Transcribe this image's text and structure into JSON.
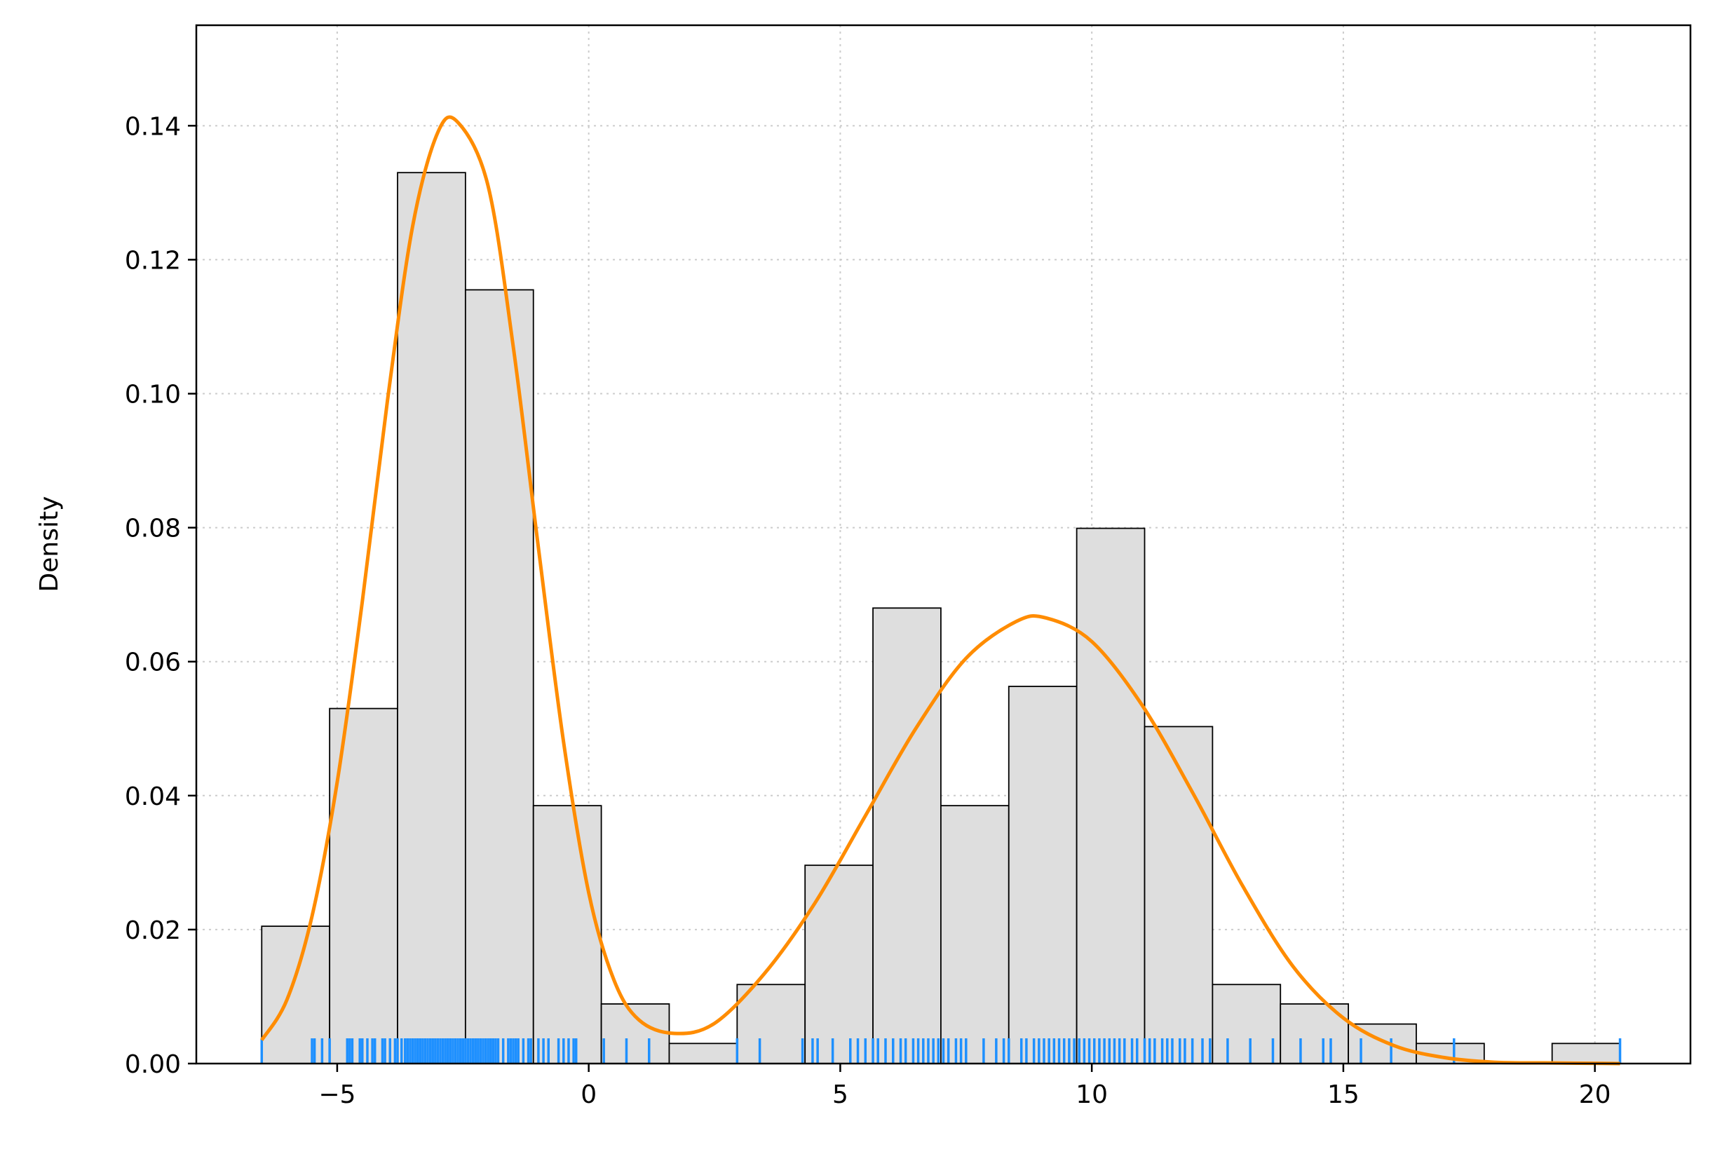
{
  "chart_data": {
    "type": "histogram",
    "xlabel": "",
    "ylabel": "Density",
    "xlim": [
      -7.8,
      21.9
    ],
    "ylim": [
      0,
      0.155
    ],
    "grid": true,
    "x_ticks": [
      -5,
      0,
      5,
      10,
      15,
      20
    ],
    "x_tick_labels": [
      "−5",
      "0",
      "5",
      "10",
      "15",
      "20"
    ],
    "y_ticks": [
      0.0,
      0.02,
      0.04,
      0.06,
      0.08,
      0.1,
      0.12,
      0.14
    ],
    "y_tick_labels": [
      "0.00",
      "0.02",
      "0.04",
      "0.06",
      "0.08",
      "0.10",
      "0.12",
      "0.14"
    ],
    "histogram": {
      "bin_edges": [
        -6.5,
        -5.15,
        -3.8,
        -2.45,
        -1.1,
        0.25,
        1.6,
        2.95,
        4.3,
        5.65,
        7.0,
        8.35,
        9.7,
        11.05,
        12.4,
        13.75,
        15.1,
        16.45,
        17.8,
        19.15,
        20.5
      ],
      "density": [
        0.0205,
        0.053,
        0.133,
        0.1155,
        0.0385,
        0.0089,
        0.003,
        0.0118,
        0.0296,
        0.068,
        0.0385,
        0.0563,
        0.0799,
        0.0503,
        0.0118,
        0.0089,
        0.0059,
        0.003,
        0.0,
        0.003
      ]
    },
    "kde": {
      "x": [
        -6.5,
        -6.0,
        -5.5,
        -5.0,
        -4.5,
        -4.0,
        -3.5,
        -3.0,
        -2.6,
        -2.0,
        -1.5,
        -1.0,
        -0.5,
        0.0,
        0.5,
        1.0,
        1.7,
        2.5,
        3.5,
        4.5,
        5.5,
        6.5,
        7.5,
        8.5,
        9.1,
        10.0,
        11.0,
        12.0,
        13.0,
        14.0,
        15.0,
        16.0,
        17.0,
        18.0,
        19.0,
        20.5
      ],
      "y": [
        0.0035,
        0.0095,
        0.022,
        0.042,
        0.069,
        0.099,
        0.125,
        0.139,
        0.1405,
        0.131,
        0.107,
        0.077,
        0.048,
        0.0255,
        0.0125,
        0.0065,
        0.0045,
        0.006,
        0.0135,
        0.024,
        0.037,
        0.05,
        0.0605,
        0.066,
        0.0665,
        0.063,
        0.0535,
        0.0405,
        0.0265,
        0.0145,
        0.0068,
        0.0027,
        0.0009,
        0.0002,
        0.0001,
        0.0
      ],
      "color": "#ff8c00"
    },
    "rug": {
      "values": [
        -6.5,
        -5.5,
        -5.45,
        -5.3,
        -5.15,
        -4.8,
        -4.75,
        -4.7,
        -4.55,
        -4.5,
        -4.4,
        -4.3,
        -4.25,
        -4.1,
        -4.05,
        -3.95,
        -3.85,
        -3.8,
        -3.72,
        -3.65,
        -3.6,
        -3.55,
        -3.5,
        -3.45,
        -3.4,
        -3.35,
        -3.3,
        -3.25,
        -3.2,
        -3.15,
        -3.1,
        -3.05,
        -3.0,
        -2.95,
        -2.9,
        -2.85,
        -2.8,
        -2.75,
        -2.7,
        -2.65,
        -2.6,
        -2.55,
        -2.5,
        -2.45,
        -2.4,
        -2.35,
        -2.3,
        -2.25,
        -2.2,
        -2.15,
        -2.1,
        -2.05,
        -2.0,
        -1.95,
        -1.9,
        -1.85,
        -1.8,
        -1.7,
        -1.6,
        -1.55,
        -1.5,
        -1.45,
        -1.4,
        -1.3,
        -1.2,
        -1.15,
        -1.0,
        -0.9,
        -0.8,
        -0.6,
        -0.5,
        -0.4,
        -0.3,
        -0.25,
        0.3,
        0.75,
        1.2,
        2.95,
        3.4,
        4.25,
        4.45,
        4.55,
        4.85,
        5.2,
        5.35,
        5.5,
        5.65,
        5.75,
        5.9,
        6.05,
        6.2,
        6.3,
        6.45,
        6.55,
        6.65,
        6.75,
        6.85,
        6.95,
        7.05,
        7.15,
        7.3,
        7.4,
        7.5,
        7.85,
        8.1,
        8.25,
        8.35,
        8.6,
        8.7,
        8.85,
        8.95,
        9.05,
        9.15,
        9.25,
        9.35,
        9.45,
        9.55,
        9.65,
        9.75,
        9.85,
        9.95,
        10.05,
        10.15,
        10.25,
        10.35,
        10.45,
        10.55,
        10.65,
        10.8,
        10.9,
        11.05,
        11.15,
        11.25,
        11.4,
        11.5,
        11.6,
        11.75,
        11.85,
        12.0,
        12.2,
        12.35,
        12.7,
        13.15,
        13.6,
        14.15,
        14.6,
        14.75,
        15.35,
        15.95,
        17.2,
        20.5
      ],
      "color": "#1e90ff"
    },
    "bar_fill": "#dedede",
    "bar_edge": "#000000"
  }
}
